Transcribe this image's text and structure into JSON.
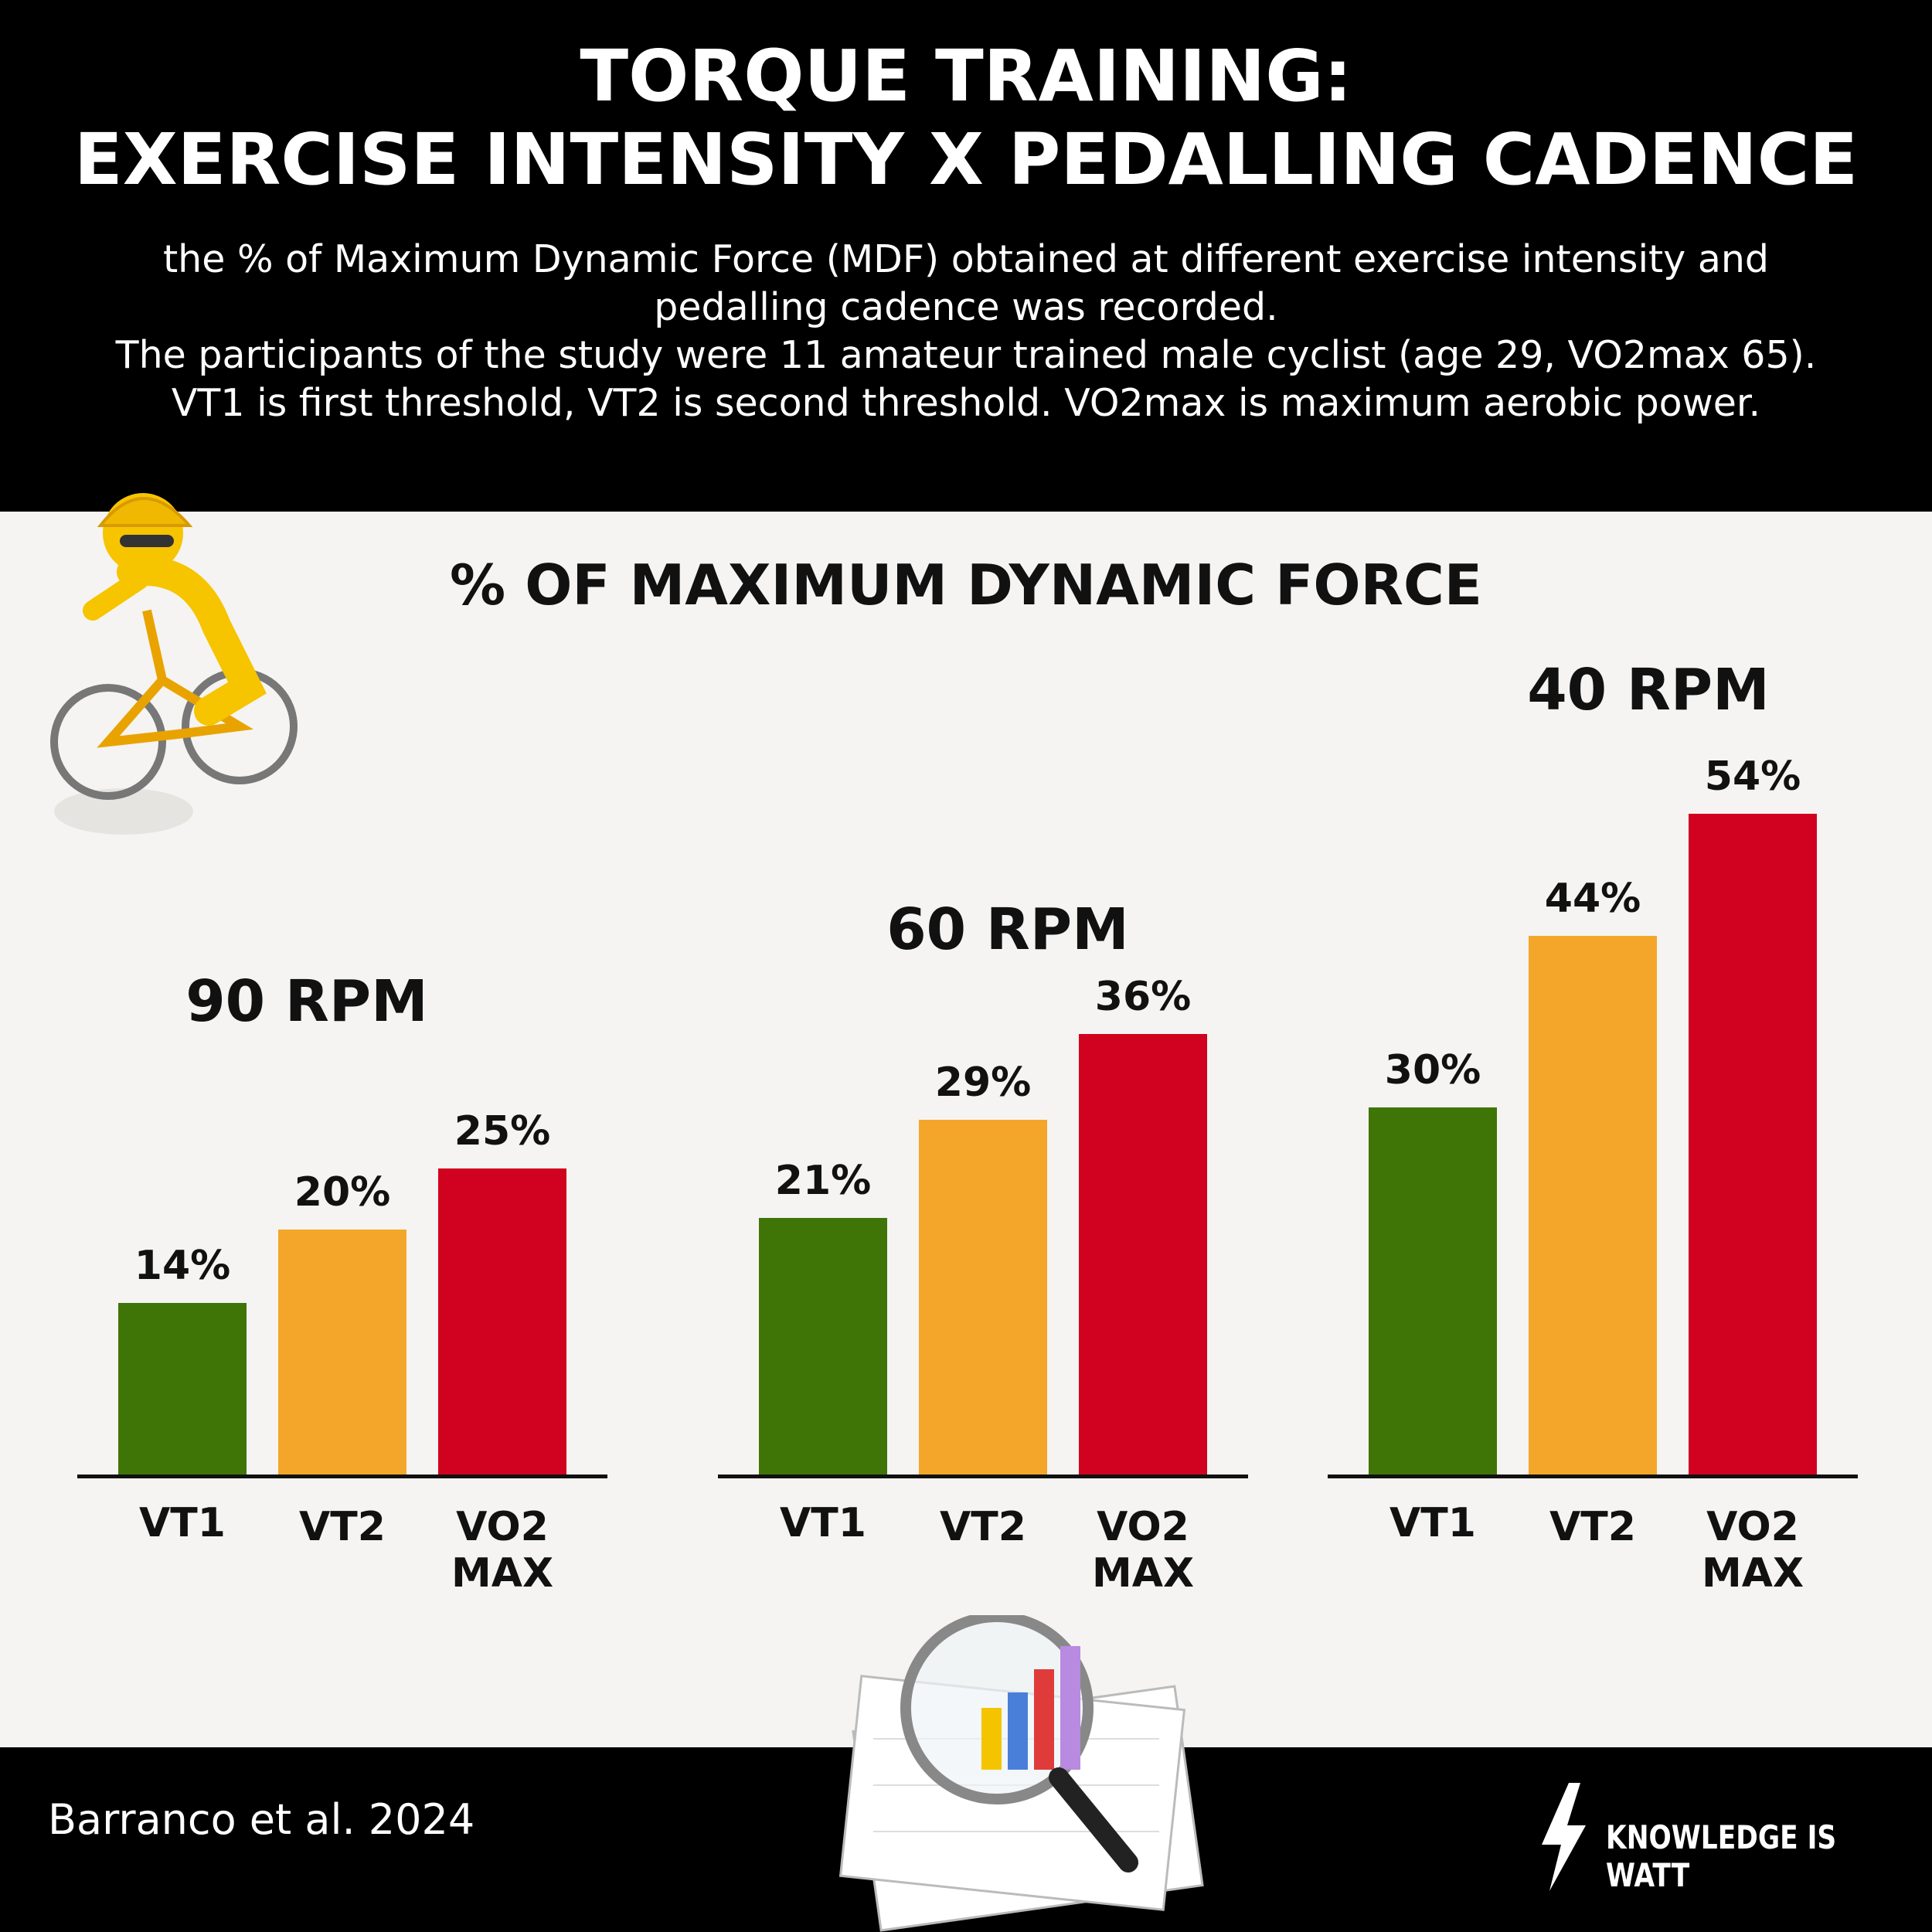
{
  "header": {
    "title_lines": [
      "TORQUE TRAINING:",
      "EXERCISE INTENSITY X PEDALLING CADENCE"
    ],
    "subtitle_lines": [
      "the % of Maximum Dynamic Force (MDF) obtained at different exercise intensity and pedalling cadence was recorded.",
      "The participants of the study were 11 amateur trained male cyclist (age 29, VO2max 65). VT1 is first threshold, VT2 is second threshold. VO2max is maximum aerobic power."
    ]
  },
  "section_title": "% OF MAXIMUM DYNAMIC FORCE",
  "chart_data": [
    {
      "type": "bar",
      "title": "90 RPM",
      "categories": [
        "VT1",
        "VT2",
        "VO2 MAX"
      ],
      "values": [
        14,
        20,
        25
      ],
      "value_labels": [
        "14%",
        "20%",
        "25%"
      ],
      "colors": [
        "#3f7506",
        "#f4a62a",
        "#d0021f"
      ],
      "ylim": [
        0,
        60
      ]
    },
    {
      "type": "bar",
      "title": "60 RPM",
      "categories": [
        "VT1",
        "VT2",
        "VO2 MAX"
      ],
      "values": [
        21,
        29,
        36
      ],
      "value_labels": [
        "21%",
        "29%",
        "36%"
      ],
      "colors": [
        "#3f7506",
        "#f4a62a",
        "#d0021f"
      ],
      "ylim": [
        0,
        60
      ]
    },
    {
      "type": "bar",
      "title": "40 RPM",
      "categories": [
        "VT1",
        "VT2",
        "VO2 MAX"
      ],
      "values": [
        30,
        44,
        54
      ],
      "value_labels": [
        "30%",
        "44%",
        "54%"
      ],
      "colors": [
        "#3f7506",
        "#f4a62a",
        "#d0021f"
      ],
      "ylim": [
        0,
        60
      ]
    }
  ],
  "footer": {
    "citation": "Barranco et al. 2024",
    "brand": "KNOWLEDGE IS WATT"
  }
}
